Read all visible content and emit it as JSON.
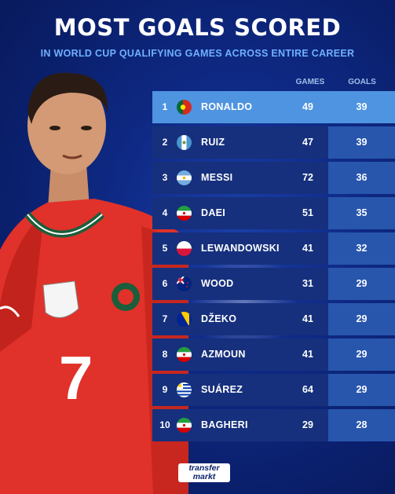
{
  "title": "MOST GOALS SCORED",
  "subtitle": "IN WORLD CUP QUALIFYING GAMES ACROSS ENTIRE CAREER",
  "columns": {
    "games": "GAMES",
    "goals": "GOALS"
  },
  "player": {
    "shirt_number": "7"
  },
  "logo": {
    "line1": "transfer",
    "line2": "markt"
  },
  "rows": [
    {
      "rank": "1",
      "name": "RONALDO",
      "games": "49",
      "goals": "39",
      "flag": "portugal-flag-icon"
    },
    {
      "rank": "2",
      "name": "RUIZ",
      "games": "47",
      "goals": "39",
      "flag": "guatemala-flag-icon"
    },
    {
      "rank": "3",
      "name": "MESSI",
      "games": "72",
      "goals": "36",
      "flag": "argentina-flag-icon"
    },
    {
      "rank": "4",
      "name": "DAEI",
      "games": "51",
      "goals": "35",
      "flag": "iran-flag-icon"
    },
    {
      "rank": "5",
      "name": "LEWANDOWSKI",
      "games": "41",
      "goals": "32",
      "flag": "poland-flag-icon"
    },
    {
      "rank": "6",
      "name": "WOOD",
      "games": "31",
      "goals": "29",
      "flag": "new-zealand-flag-icon"
    },
    {
      "rank": "7",
      "name": "DŽEKO",
      "games": "41",
      "goals": "29",
      "flag": "bosnia-flag-icon"
    },
    {
      "rank": "8",
      "name": "AZMOUN",
      "games": "41",
      "goals": "29",
      "flag": "iran-flag-icon"
    },
    {
      "rank": "9",
      "name": "SUÁREZ",
      "games": "64",
      "goals": "29",
      "flag": "uruguay-flag-icon"
    },
    {
      "rank": "10",
      "name": "BAGHERI",
      "games": "29",
      "goals": "28",
      "flag": "iran-flag-icon"
    }
  ]
}
